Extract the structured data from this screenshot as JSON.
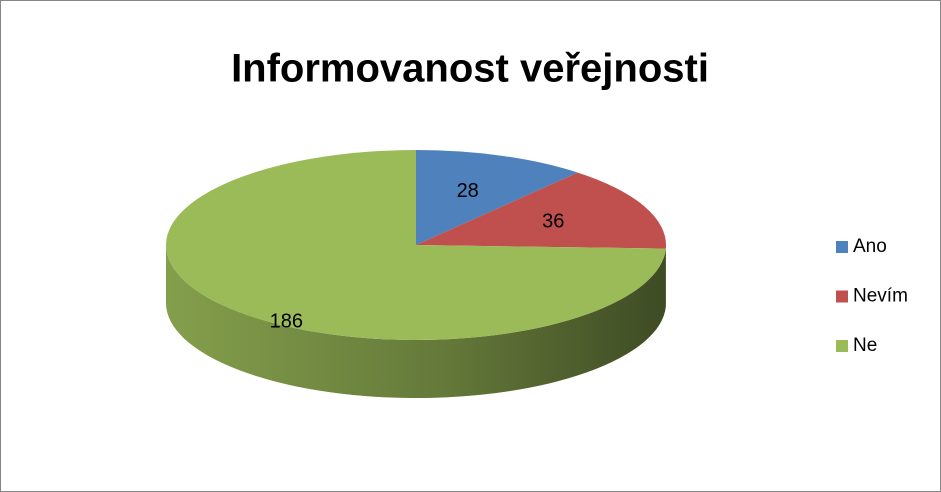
{
  "chart_data": {
    "type": "pie",
    "title": "Informovanost veřejnosti",
    "categories": [
      "Ano",
      "Nevím",
      "Ne"
    ],
    "values": [
      28,
      36,
      186
    ],
    "colors": [
      "#4f81bd",
      "#c0504d",
      "#9bbb59"
    ],
    "legend": "right"
  }
}
